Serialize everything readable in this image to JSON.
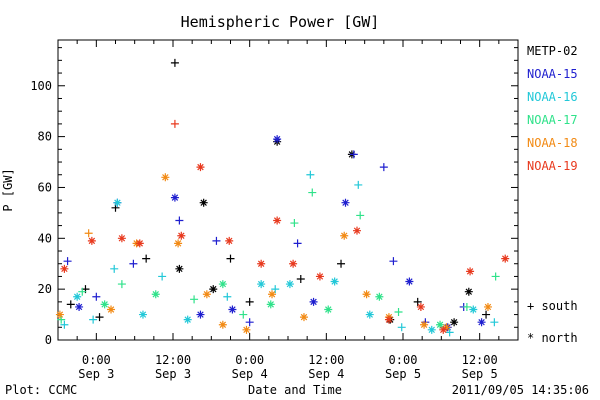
{
  "chart_data": {
    "type": "scatter",
    "title": "Hemispheric Power [GW]",
    "xlabel": "Date and Time",
    "ylabel": "P [GW]",
    "x_unit": "hours since 2011-09-02 18:00 UT",
    "xlim": [
      0,
      72
    ],
    "ylim": [
      0,
      118
    ],
    "yticks": [
      0,
      20,
      40,
      60,
      80,
      100
    ],
    "xticks": [
      {
        "x": 6,
        "time": "0:00",
        "date": "Sep 3"
      },
      {
        "x": 18,
        "time": "12:00",
        "date": "Sep 3"
      },
      {
        "x": 30,
        "time": "0:00",
        "date": "Sep 4"
      },
      {
        "x": 42,
        "time": "12:00",
        "date": "Sep 4"
      },
      {
        "x": 54,
        "time": "0:00",
        "date": "Sep 5"
      },
      {
        "x": 66,
        "time": "12:00",
        "date": "Sep 5"
      }
    ],
    "marker_legend": [
      {
        "symbol": "+",
        "label": "south"
      },
      {
        "symbol": "*",
        "label": "north"
      }
    ],
    "series": [
      {
        "name": "METP-02",
        "color": "#000000",
        "points": [
          {
            "x": 2.0,
            "y": 14,
            "m": "+"
          },
          {
            "x": 4.3,
            "y": 20,
            "m": "+"
          },
          {
            "x": 6.5,
            "y": 9,
            "m": "+"
          },
          {
            "x": 9.0,
            "y": 52,
            "m": "+"
          },
          {
            "x": 13.8,
            "y": 32,
            "m": "+"
          },
          {
            "x": 18.3,
            "y": 109,
            "m": "+"
          },
          {
            "x": 19.0,
            "y": 28,
            "m": "*"
          },
          {
            "x": 22.8,
            "y": 54,
            "m": "*"
          },
          {
            "x": 24.3,
            "y": 20,
            "m": "*"
          },
          {
            "x": 27.0,
            "y": 32,
            "m": "+"
          },
          {
            "x": 30.0,
            "y": 15,
            "m": "+"
          },
          {
            "x": 34.3,
            "y": 78,
            "m": "*"
          },
          {
            "x": 38.0,
            "y": 24,
            "m": "+"
          },
          {
            "x": 44.3,
            "y": 30,
            "m": "+"
          },
          {
            "x": 46.0,
            "y": 73,
            "m": "*"
          },
          {
            "x": 52.0,
            "y": 8,
            "m": "*"
          },
          {
            "x": 56.3,
            "y": 15,
            "m": "+"
          },
          {
            "x": 62.0,
            "y": 7,
            "m": "*"
          },
          {
            "x": 64.3,
            "y": 19,
            "m": "*"
          },
          {
            "x": 67.0,
            "y": 10,
            "m": "+"
          }
        ]
      },
      {
        "name": "NOAA-15",
        "color": "#1f1fcf",
        "points": [
          {
            "x": 1.5,
            "y": 31,
            "m": "+"
          },
          {
            "x": 3.3,
            "y": 13,
            "m": "*"
          },
          {
            "x": 6.0,
            "y": 17,
            "m": "+"
          },
          {
            "x": 9.3,
            "y": 54,
            "m": "+"
          },
          {
            "x": 11.8,
            "y": 30,
            "m": "+"
          },
          {
            "x": 18.3,
            "y": 56,
            "m": "*"
          },
          {
            "x": 19.0,
            "y": 47,
            "m": "+"
          },
          {
            "x": 22.3,
            "y": 10,
            "m": "*"
          },
          {
            "x": 24.8,
            "y": 39,
            "m": "+"
          },
          {
            "x": 27.3,
            "y": 12,
            "m": "*"
          },
          {
            "x": 30.0,
            "y": 7,
            "m": "+"
          },
          {
            "x": 34.3,
            "y": 79,
            "m": "*"
          },
          {
            "x": 37.5,
            "y": 38,
            "m": "+"
          },
          {
            "x": 40.0,
            "y": 15,
            "m": "*"
          },
          {
            "x": 45.0,
            "y": 54,
            "m": "*"
          },
          {
            "x": 46.3,
            "y": 73,
            "m": "+"
          },
          {
            "x": 51.0,
            "y": 68,
            "m": "+"
          },
          {
            "x": 52.5,
            "y": 31,
            "m": "+"
          },
          {
            "x": 55.0,
            "y": 23,
            "m": "*"
          },
          {
            "x": 57.5,
            "y": 7,
            "m": "+"
          },
          {
            "x": 61.0,
            "y": 5,
            "m": "*"
          },
          {
            "x": 63.5,
            "y": 13,
            "m": "+"
          },
          {
            "x": 66.3,
            "y": 7,
            "m": "*"
          }
        ]
      },
      {
        "name": "NOAA-16",
        "color": "#22c8d8",
        "points": [
          {
            "x": 1.0,
            "y": 6,
            "m": "+"
          },
          {
            "x": 3.0,
            "y": 17,
            "m": "*"
          },
          {
            "x": 5.5,
            "y": 8,
            "m": "+"
          },
          {
            "x": 8.8,
            "y": 28,
            "m": "+"
          },
          {
            "x": 9.3,
            "y": 54,
            "m": "*"
          },
          {
            "x": 13.3,
            "y": 10,
            "m": "*"
          },
          {
            "x": 16.3,
            "y": 25,
            "m": "+"
          },
          {
            "x": 20.3,
            "y": 8,
            "m": "*"
          },
          {
            "x": 26.5,
            "y": 17,
            "m": "+"
          },
          {
            "x": 31.8,
            "y": 22,
            "m": "*"
          },
          {
            "x": 34.0,
            "y": 20,
            "m": "+"
          },
          {
            "x": 36.3,
            "y": 22,
            "m": "*"
          },
          {
            "x": 39.5,
            "y": 65,
            "m": "+"
          },
          {
            "x": 43.3,
            "y": 23,
            "m": "*"
          },
          {
            "x": 47.0,
            "y": 61,
            "m": "+"
          },
          {
            "x": 48.8,
            "y": 10,
            "m": "*"
          },
          {
            "x": 53.8,
            "y": 5,
            "m": "+"
          },
          {
            "x": 58.5,
            "y": 4,
            "m": "*"
          },
          {
            "x": 61.3,
            "y": 3,
            "m": "+"
          },
          {
            "x": 65.0,
            "y": 12,
            "m": "*"
          },
          {
            "x": 68.3,
            "y": 7,
            "m": "+"
          }
        ]
      },
      {
        "name": "NOAA-17",
        "color": "#2fe28a",
        "points": [
          {
            "x": 0.5,
            "y": 8,
            "m": "+"
          },
          {
            "x": 3.8,
            "y": 19,
            "m": "+"
          },
          {
            "x": 7.3,
            "y": 14,
            "m": "*"
          },
          {
            "x": 10.0,
            "y": 22,
            "m": "+"
          },
          {
            "x": 15.3,
            "y": 18,
            "m": "*"
          },
          {
            "x": 21.3,
            "y": 16,
            "m": "+"
          },
          {
            "x": 25.8,
            "y": 22,
            "m": "*"
          },
          {
            "x": 29.0,
            "y": 10,
            "m": "+"
          },
          {
            "x": 33.3,
            "y": 14,
            "m": "*"
          },
          {
            "x": 37.0,
            "y": 46,
            "m": "+"
          },
          {
            "x": 39.8,
            "y": 58,
            "m": "+"
          },
          {
            "x": 42.3,
            "y": 12,
            "m": "*"
          },
          {
            "x": 47.3,
            "y": 49,
            "m": "+"
          },
          {
            "x": 50.3,
            "y": 17,
            "m": "*"
          },
          {
            "x": 53.3,
            "y": 11,
            "m": "+"
          },
          {
            "x": 59.8,
            "y": 6,
            "m": "*"
          },
          {
            "x": 64.0,
            "y": 13,
            "m": "+"
          },
          {
            "x": 68.5,
            "y": 25,
            "m": "+"
          }
        ]
      },
      {
        "name": "NOAA-18",
        "color": "#f28a14",
        "points": [
          {
            "x": 0.3,
            "y": 10,
            "m": "*"
          },
          {
            "x": 4.8,
            "y": 42,
            "m": "+"
          },
          {
            "x": 8.3,
            "y": 12,
            "m": "*"
          },
          {
            "x": 12.3,
            "y": 38,
            "m": "*"
          },
          {
            "x": 16.8,
            "y": 64,
            "m": "*"
          },
          {
            "x": 18.8,
            "y": 38,
            "m": "*"
          },
          {
            "x": 23.3,
            "y": 18,
            "m": "*"
          },
          {
            "x": 25.8,
            "y": 6,
            "m": "*"
          },
          {
            "x": 29.5,
            "y": 4,
            "m": "*"
          },
          {
            "x": 33.5,
            "y": 18,
            "m": "*"
          },
          {
            "x": 38.5,
            "y": 9,
            "m": "*"
          },
          {
            "x": 44.8,
            "y": 41,
            "m": "*"
          },
          {
            "x": 48.3,
            "y": 18,
            "m": "*"
          },
          {
            "x": 51.8,
            "y": 9,
            "m": "*"
          },
          {
            "x": 57.3,
            "y": 6,
            "m": "*"
          },
          {
            "x": 60.8,
            "y": 5,
            "m": "*"
          },
          {
            "x": 67.3,
            "y": 13,
            "m": "*"
          }
        ]
      },
      {
        "name": "NOAA-19",
        "color": "#e8391e",
        "points": [
          {
            "x": 1.0,
            "y": 28,
            "m": "*"
          },
          {
            "x": 5.3,
            "y": 39,
            "m": "*"
          },
          {
            "x": 10.0,
            "y": 40,
            "m": "*"
          },
          {
            "x": 12.8,
            "y": 38,
            "m": "*"
          },
          {
            "x": 18.3,
            "y": 85,
            "m": "+"
          },
          {
            "x": 19.3,
            "y": 41,
            "m": "*"
          },
          {
            "x": 22.3,
            "y": 68,
            "m": "*"
          },
          {
            "x": 26.8,
            "y": 39,
            "m": "*"
          },
          {
            "x": 31.8,
            "y": 30,
            "m": "*"
          },
          {
            "x": 34.3,
            "y": 47,
            "m": "*"
          },
          {
            "x": 36.8,
            "y": 30,
            "m": "*"
          },
          {
            "x": 41.0,
            "y": 25,
            "m": "*"
          },
          {
            "x": 46.8,
            "y": 43,
            "m": "*"
          },
          {
            "x": 51.8,
            "y": 8,
            "m": "*"
          },
          {
            "x": 56.8,
            "y": 13,
            "m": "*"
          },
          {
            "x": 60.3,
            "y": 4,
            "m": "*"
          },
          {
            "x": 64.5,
            "y": 27,
            "m": "*"
          },
          {
            "x": 70.0,
            "y": 32,
            "m": "*"
          }
        ]
      }
    ]
  },
  "footer": {
    "plot_label": "Plot: CCMC",
    "timestamp": "2011/09/05 14:35:06"
  }
}
